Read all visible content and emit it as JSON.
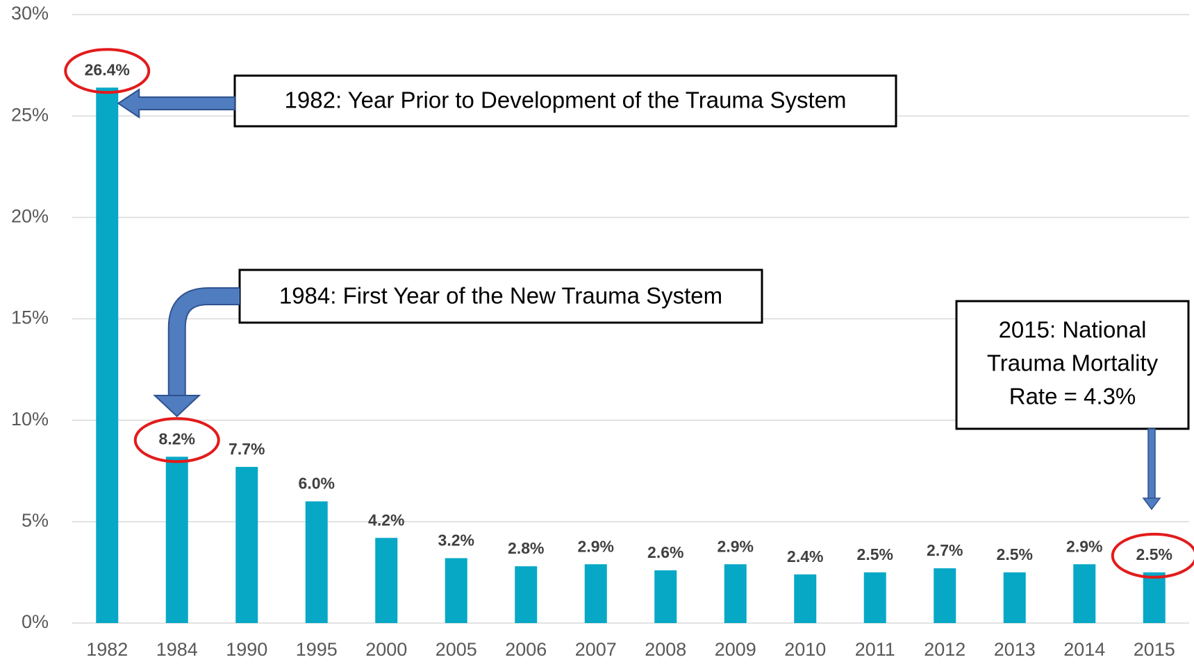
{
  "chart_data": {
    "type": "bar",
    "categories": [
      "1982",
      "1984",
      "1990",
      "1995",
      "2000",
      "2005",
      "2006",
      "2007",
      "2008",
      "2009",
      "2010",
      "2011",
      "2012",
      "2013",
      "2014",
      "2015"
    ],
    "values": [
      26.4,
      8.2,
      7.7,
      6.0,
      4.2,
      3.2,
      2.8,
      2.9,
      2.6,
      2.9,
      2.4,
      2.5,
      2.7,
      2.5,
      2.9,
      2.5
    ],
    "value_labels": [
      "26.4%",
      "8.2%",
      "7.7%",
      "6.0%",
      "4.2%",
      "3.2%",
      "2.8%",
      "2.9%",
      "2.6%",
      "2.9%",
      "2.4%",
      "2.5%",
      "2.7%",
      "2.5%",
      "2.9%",
      "2.5%"
    ],
    "color": "#07a8c6",
    "ylim": [
      0,
      30
    ],
    "yticks": [
      {
        "value": 0,
        "label": "0%"
      },
      {
        "value": 5,
        "label": "5%"
      },
      {
        "value": 10,
        "label": "10%"
      },
      {
        "value": 15,
        "label": "15%"
      },
      {
        "value": 20,
        "label": "20%"
      },
      {
        "value": 25,
        "label": "25%"
      },
      {
        "value": 30,
        "label": "30%"
      }
    ],
    "grid": true,
    "annotations": [
      {
        "text": "1982: Year Prior to Development  of the Trauma System"
      },
      {
        "text": "1984: First Year of the New Trauma System"
      },
      {
        "lines": [
          "2015: National",
          "Trauma Mortality",
          "Rate = 4.3%"
        ]
      }
    ]
  }
}
